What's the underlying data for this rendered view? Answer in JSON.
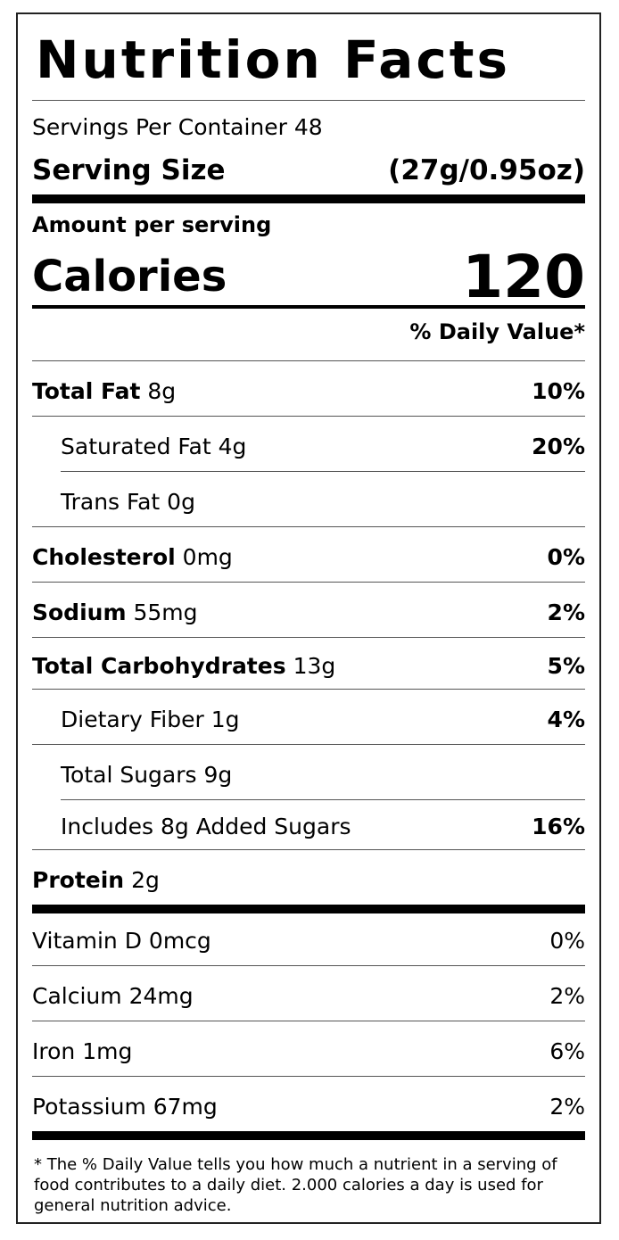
{
  "title": "Nutrition Facts",
  "servings_per_container": "Servings Per Container 48",
  "serving_size": {
    "label": "Serving Size",
    "value": "(27g/0.95oz)"
  },
  "amount_per_serving": "Amount per serving",
  "calories": {
    "label": "Calories",
    "value": "120"
  },
  "daily_value_header": "% Daily Value*",
  "nutrients": [
    {
      "name": "Total Fat",
      "amount": "8g",
      "dv": "10%"
    },
    {
      "name": "Saturated Fat",
      "amount": "4g",
      "dv": "20%"
    },
    {
      "name": "Trans Fat",
      "amount": "0g",
      "dv": ""
    },
    {
      "name": "Cholesterol",
      "amount": "0mg",
      "dv": "0%"
    },
    {
      "name": "Sodium",
      "amount": "55mg",
      "dv": "2%"
    },
    {
      "name": "Total Carbohydrates",
      "amount": "13g",
      "dv": "5%"
    },
    {
      "name": "Dietary Fiber",
      "amount": "1g",
      "dv": "4%"
    },
    {
      "name": "Total Sugars",
      "amount": "9g",
      "dv": ""
    },
    {
      "name": "Includes 8g Added Sugars",
      "amount": "",
      "dv": "16%"
    },
    {
      "name": "Protein",
      "amount": "2g",
      "dv": ""
    }
  ],
  "vitamins": [
    {
      "name": "Vitamin D",
      "amount": "0mcg",
      "dv": "0%"
    },
    {
      "name": "Calcium",
      "amount": "24mg",
      "dv": "2%"
    },
    {
      "name": "Iron",
      "amount": "1mg",
      "dv": "6%"
    },
    {
      "name": "Potassium",
      "amount": "67mg",
      "dv": "2%"
    }
  ],
  "footnote": "* The % Daily Value tells you how much a nutrient in a serving of food contributes to a daily diet. 2.000 calories a day is used for general nutrition advice."
}
